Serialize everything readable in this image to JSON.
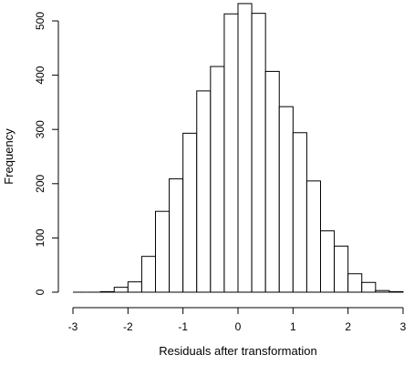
{
  "chart_data": {
    "type": "bar",
    "title": "",
    "xlabel": "Residuals after transformation",
    "ylabel": "Frequency",
    "xlim": [
      -3,
      3
    ],
    "ylim": [
      0,
      550
    ],
    "xticks": [
      -3,
      -2,
      -1,
      0,
      1,
      2,
      3
    ],
    "yticks": [
      0,
      100,
      200,
      300,
      400,
      500
    ],
    "grid": false,
    "legend": "none",
    "bin_width": 0.25,
    "bins": [
      {
        "x0": -3.0,
        "x1": -2.75,
        "count": 0
      },
      {
        "x0": -2.75,
        "x1": -2.5,
        "count": 0
      },
      {
        "x0": -2.5,
        "x1": -2.25,
        "count": 1
      },
      {
        "x0": -2.25,
        "x1": -2.0,
        "count": 9
      },
      {
        "x0": -2.0,
        "x1": -1.75,
        "count": 19
      },
      {
        "x0": -1.75,
        "x1": -1.5,
        "count": 66
      },
      {
        "x0": -1.5,
        "x1": -1.25,
        "count": 149
      },
      {
        "x0": -1.25,
        "x1": -1.0,
        "count": 209
      },
      {
        "x0": -1.0,
        "x1": -0.75,
        "count": 293
      },
      {
        "x0": -0.75,
        "x1": -0.5,
        "count": 371
      },
      {
        "x0": -0.5,
        "x1": -0.25,
        "count": 416
      },
      {
        "x0": -0.25,
        "x1": 0.0,
        "count": 513
      },
      {
        "x0": 0.0,
        "x1": 0.25,
        "count": 532
      },
      {
        "x0": 0.25,
        "x1": 0.5,
        "count": 514
      },
      {
        "x0": 0.5,
        "x1": 0.75,
        "count": 407
      },
      {
        "x0": 0.75,
        "x1": 1.0,
        "count": 342
      },
      {
        "x0": 1.0,
        "x1": 1.25,
        "count": 294
      },
      {
        "x0": 1.25,
        "x1": 1.5,
        "count": 205
      },
      {
        "x0": 1.5,
        "x1": 1.75,
        "count": 113
      },
      {
        "x0": 1.75,
        "x1": 2.0,
        "count": 85
      },
      {
        "x0": 2.0,
        "x1": 2.25,
        "count": 34
      },
      {
        "x0": 2.25,
        "x1": 2.5,
        "count": 18
      },
      {
        "x0": 2.5,
        "x1": 2.75,
        "count": 3
      },
      {
        "x0": 2.75,
        "x1": 3.0,
        "count": 1
      }
    ],
    "colors": {
      "bar_fill": "#ffffff",
      "bar_stroke": "#000000"
    }
  }
}
